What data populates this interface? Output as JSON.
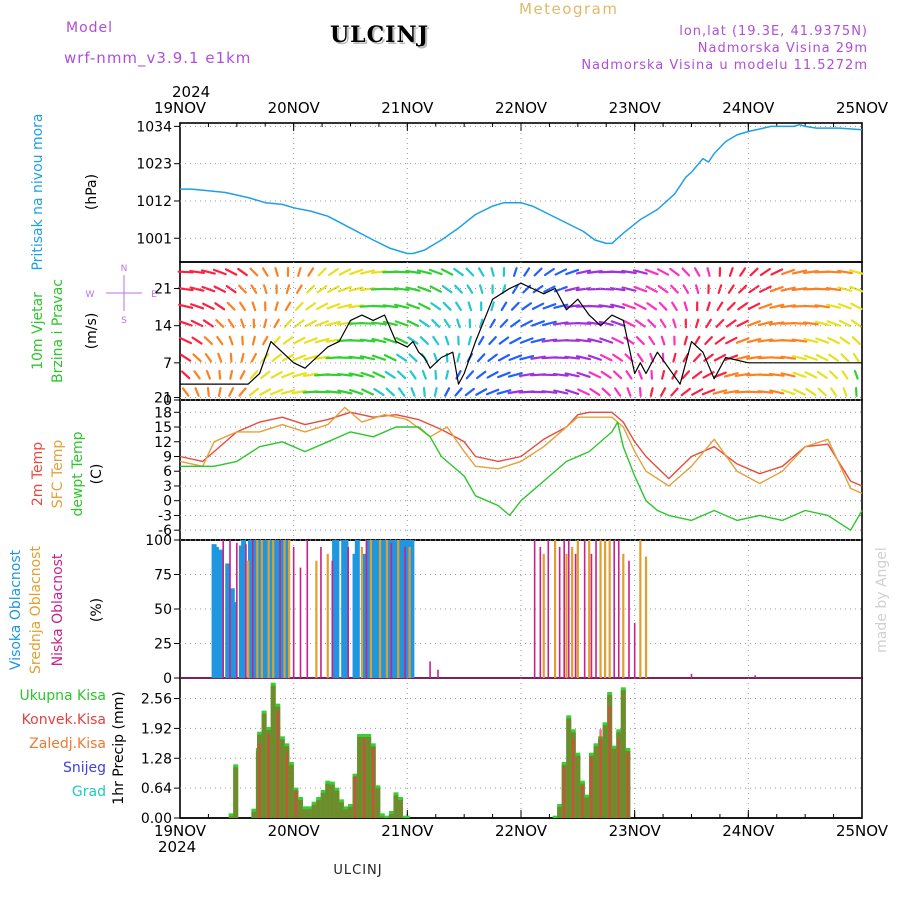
{
  "header": {
    "model_label": "Model",
    "model_name": "wrf-nmm_v3.9.1 e1km",
    "station": "ULCINJ",
    "title": "Meteogram",
    "coords": "lon,lat (19.3E, 41.9375N)",
    "elevation": "Nadmorska Visina 29m",
    "model_elevation": "Nadmorska Visina u modelu 11.5272m",
    "year_top": "2024",
    "year_bottom": "2024",
    "footer_station": "ULCINJ",
    "watermark": "made by Angel"
  },
  "colors": {
    "pressure": "#1ea0e6",
    "t2m": "#e84a3c",
    "sfc": "#e2a13a",
    "dewpt": "#2cc62c",
    "high_cloud": "#1e96e0",
    "mid_cloud": "#e0a030",
    "low_cloud": "#c8208c",
    "total_precip": "#34d034",
    "conv_precip": "#e84040",
    "speed_line": "#000000"
  },
  "time_axis": {
    "labels": [
      "19NOV",
      "20NOV",
      "21NOV",
      "22NOV",
      "23NOV",
      "24NOV",
      "25NOV"
    ]
  },
  "chart_data": [
    {
      "type": "line",
      "id": "pressure",
      "ylabels": [
        "Pritisak na nivou mora",
        "(hPa)"
      ],
      "yticks": [
        1001,
        1012,
        1023,
        1034
      ],
      "ylim": [
        994,
        1035
      ],
      "series": [
        {
          "x": [
            0,
            0.1,
            0.25,
            0.4,
            0.6,
            0.75,
            0.9,
            1.0,
            1.15,
            1.3,
            1.5,
            1.7,
            1.85,
            2.0,
            2.05,
            2.15,
            2.3,
            2.45,
            2.6,
            2.75,
            2.85,
            3.0,
            3.1,
            3.25,
            3.4,
            3.55,
            3.65,
            3.75,
            3.8,
            3.9,
            4.05,
            4.2,
            4.35,
            4.45,
            4.5,
            4.55,
            4.6,
            4.65,
            4.7,
            4.8,
            4.9,
            5.0,
            5.2,
            5.4,
            5.45,
            5.5,
            5.6,
            5.8,
            6.0
          ],
          "values": [
            1015.5,
            1015.5,
            1015,
            1014.5,
            1013,
            1011.5,
            1011,
            1010,
            1009,
            1007.5,
            1004,
            1000.5,
            998,
            996.5,
            996.5,
            997.5,
            1000.5,
            1004,
            1008,
            1010.5,
            1011.5,
            1011.5,
            1010.5,
            1008,
            1005.5,
            1003,
            1000.5,
            999.5,
            999.5,
            1002.5,
            1006.5,
            1009.5,
            1014,
            1019,
            1020.5,
            1022.5,
            1024.5,
            1023.5,
            1026,
            1029.5,
            1031.5,
            1032.5,
            1034,
            1034,
            1034.5,
            1034,
            1033.5,
            1033.5,
            1033
          ]
        }
      ]
    },
    {
      "type": "line",
      "id": "wind",
      "ylabels": [
        "10m Vjetar",
        "Brzina i Pravac",
        "(m/s)"
      ],
      "compass": [
        "N",
        "S",
        "E",
        "W"
      ],
      "yticks": [
        0,
        7,
        14,
        21
      ],
      "ylim": [
        0,
        26
      ],
      "series": [
        {
          "name": "speed",
          "x": [
            0,
            0.3,
            0.5,
            0.6,
            0.7,
            0.8,
            0.9,
            1.0,
            1.1,
            1.2,
            1.3,
            1.4,
            1.5,
            1.6,
            1.7,
            1.8,
            1.9,
            2.0,
            2.05,
            2.1,
            2.15,
            2.2,
            2.3,
            2.4,
            2.45,
            2.5,
            2.6,
            2.75,
            2.9,
            3.0,
            3.1,
            3.2,
            3.3,
            3.4,
            3.5,
            3.6,
            3.7,
            3.8,
            3.9,
            4.0,
            4.05,
            4.1,
            4.2,
            4.3,
            4.4,
            4.5,
            4.6,
            4.7,
            4.8,
            5.0,
            5.2,
            5.4,
            5.6,
            5.8,
            6.0
          ],
          "values": [
            3,
            3,
            3,
            3,
            5,
            11,
            9,
            7,
            6,
            8,
            10,
            11,
            15,
            16,
            15,
            16,
            11,
            10,
            11,
            9,
            8,
            6,
            8,
            9,
            3,
            5,
            11,
            19,
            21,
            22,
            21,
            20,
            21,
            17,
            19,
            16,
            14,
            16,
            15,
            5,
            7,
            5,
            9,
            6,
            3,
            11,
            9,
            4,
            8,
            7,
            7,
            7,
            7,
            7,
            7
          ]
        }
      ]
    },
    {
      "type": "line",
      "id": "temperature",
      "ylabels": [
        "2m Temp",
        "SFC Temp",
        "dewpt Temp",
        "(C)"
      ],
      "yticks": [
        -6,
        -3,
        0,
        3,
        6,
        9,
        12,
        15,
        18,
        21
      ],
      "ylim": [
        -8,
        20.5
      ],
      "series": [
        {
          "name": "2m Temp",
          "x": [
            0,
            0.2,
            0.3,
            0.5,
            0.7,
            0.9,
            1.1,
            1.3,
            1.5,
            1.7,
            1.9,
            2.1,
            2.3,
            2.5,
            2.6,
            2.8,
            3.0,
            3.2,
            3.4,
            3.5,
            3.6,
            3.8,
            3.9,
            4.0,
            4.1,
            4.3,
            4.5,
            4.7,
            4.9,
            5.1,
            5.3,
            5.5,
            5.7,
            5.9,
            6.0
          ],
          "values": [
            9,
            8,
            10,
            14,
            16,
            17,
            15.5,
            16.5,
            18,
            17,
            17.5,
            16.5,
            14.5,
            12,
            9,
            8,
            9,
            12.5,
            15,
            17.5,
            18,
            18,
            16,
            12,
            9,
            4.5,
            9,
            11,
            7.5,
            5.5,
            7,
            11,
            11.5,
            4,
            3
          ]
        },
        {
          "name": "SFC Temp",
          "x": [
            0,
            0.2,
            0.3,
            0.5,
            0.7,
            0.9,
            1.1,
            1.3,
            1.45,
            1.6,
            1.8,
            2.0,
            2.2,
            2.35,
            2.5,
            2.6,
            2.8,
            3.0,
            3.2,
            3.4,
            3.5,
            3.6,
            3.8,
            3.9,
            4.0,
            4.1,
            4.3,
            4.5,
            4.7,
            4.9,
            5.1,
            5.3,
            5.5,
            5.7,
            5.9,
            6.0
          ],
          "values": [
            8,
            7,
            12,
            14,
            14,
            15.5,
            14,
            15.5,
            19,
            16,
            17.5,
            16.5,
            13,
            15,
            10,
            7,
            6.5,
            8,
            11,
            15,
            17,
            17,
            17,
            15,
            10,
            6,
            3,
            7,
            12.5,
            6,
            3.5,
            6,
            11,
            12.5,
            2.5,
            1.5
          ]
        },
        {
          "name": "dewpt Temp",
          "x": [
            0,
            0.2,
            0.3,
            0.5,
            0.7,
            0.9,
            1.1,
            1.3,
            1.5,
            1.7,
            1.9,
            2.1,
            2.2,
            2.3,
            2.5,
            2.6,
            2.8,
            2.9,
            3.0,
            3.2,
            3.4,
            3.6,
            3.8,
            3.85,
            3.9,
            4.0,
            4.1,
            4.2,
            4.3,
            4.5,
            4.7,
            4.9,
            5.1,
            5.3,
            5.5,
            5.7,
            5.9,
            6.0
          ],
          "values": [
            7,
            7,
            7,
            8,
            11,
            12,
            10,
            12,
            14,
            13,
            15,
            15,
            13,
            9,
            5,
            1,
            -1,
            -3,
            0,
            4,
            8,
            10,
            14,
            16,
            11,
            5,
            0,
            -2,
            -3,
            -4,
            -2,
            -4,
            -3,
            -4,
            -2,
            -3,
            -6,
            -2
          ]
        }
      ]
    },
    {
      "type": "bar",
      "id": "cloud",
      "ylabels": [
        "Visoka Oblacnost",
        "Srednja Oblacnost",
        "Niska Oblacnost",
        "(%)"
      ],
      "yticks": [
        0,
        25,
        50,
        75,
        100
      ],
      "ylim": [
        0,
        100
      ],
      "series": [
        {
          "name": "Visoka Oblacnost",
          "x": [
            0.3,
            0.32,
            0.36,
            0.42,
            0.46,
            0.48,
            0.54,
            0.56,
            0.62,
            0.66,
            0.7,
            0.74,
            0.76,
            0.8,
            0.84,
            0.86,
            0.9,
            0.94,
            1.36,
            1.38,
            1.44,
            1.46,
            1.54,
            1.56,
            1.62,
            1.66,
            1.7,
            1.72,
            1.74,
            1.78,
            1.8,
            1.84,
            1.88,
            1.9,
            1.94,
            1.96,
            2.0,
            2.04
          ],
          "values": [
            97,
            95,
            93,
            83,
            65,
            55,
            96,
            100,
            100,
            100,
            100,
            100,
            100,
            100,
            100,
            100,
            100,
            100,
            100,
            100,
            100,
            100,
            90,
            100,
            90,
            100,
            100,
            100,
            100,
            100,
            100,
            100,
            100,
            100,
            100,
            100,
            100,
            100
          ]
        },
        {
          "name": "Srednja Oblacnost",
          "x": [
            0.6,
            0.68,
            0.72,
            0.78,
            0.82,
            0.92,
            0.96,
            1.2,
            1.3,
            1.6,
            1.68,
            1.76,
            1.82,
            1.92,
            2.02,
            3.2,
            3.3,
            3.4,
            3.45,
            3.5,
            3.6,
            3.7,
            3.74,
            3.78,
            3.9,
            4.05,
            4.1
          ],
          "values": [
            85,
            100,
            100,
            100,
            100,
            100,
            100,
            85,
            90,
            95,
            100,
            100,
            100,
            100,
            95,
            90,
            100,
            90,
            95,
            100,
            100,
            100,
            100,
            100,
            90,
            100,
            88
          ]
        },
        {
          "name": "Niska Oblacnost",
          "x": [
            0.38,
            0.44,
            0.5,
            0.58,
            0.64,
            0.88,
            1.0,
            1.06,
            1.12,
            1.24,
            1.34,
            1.48,
            1.64,
            1.86,
            1.98,
            2.2,
            2.27,
            3.12,
            3.17,
            3.24,
            3.34,
            3.38,
            3.42,
            3.48,
            3.56,
            3.62,
            3.66,
            3.82,
            3.86,
            3.95,
            4.0,
            4.5,
            5.06
          ],
          "values": [
            100,
            100,
            98,
            97,
            100,
            100,
            95,
            80,
            100,
            95,
            85,
            95,
            100,
            98,
            95,
            12,
            6,
            100,
            95,
            100,
            95,
            100,
            100,
            90,
            100,
            90,
            100,
            100,
            100,
            85,
            40,
            3,
            2
          ]
        }
      ]
    },
    {
      "type": "bar",
      "id": "precip",
      "ylabels": [
        "1hr Precip (mm)"
      ],
      "legend": [
        "Ukupna Kisa",
        "Konvek.Kisa",
        "Zaledj.Kisa",
        "Snijeg",
        "Grad"
      ],
      "yticks": [
        0,
        0.64,
        1.28,
        1.92,
        2.56
      ],
      "ylim": [
        0,
        3.0
      ],
      "series": [
        {
          "name": "Ukupna Kisa",
          "x": [
            0.45,
            0.49,
            0.65,
            0.69,
            0.7,
            0.74,
            0.78,
            0.82,
            0.86,
            0.9,
            0.94,
            0.98,
            1.02,
            1.06,
            1.1,
            1.14,
            1.18,
            1.22,
            1.26,
            1.3,
            1.34,
            1.38,
            1.42,
            1.46,
            1.5,
            1.54,
            1.58,
            1.62,
            1.66,
            1.7,
            1.74,
            1.78,
            1.82,
            1.86,
            1.9,
            1.94,
            1.98,
            2.0,
            3.3,
            3.34,
            3.38,
            3.42,
            3.46,
            3.5,
            3.54,
            3.58,
            3.62,
            3.66,
            3.7,
            3.74,
            3.78,
            3.82,
            3.86,
            3.9,
            3.94
          ],
          "values": [
            0.1,
            1.15,
            0.2,
            1.5,
            1.85,
            2.3,
            1.95,
            2.9,
            2.45,
            1.75,
            1.6,
            1.2,
            0.65,
            0.45,
            0.25,
            0.25,
            0.35,
            0.45,
            0.6,
            0.8,
            0.78,
            0.65,
            0.4,
            0.25,
            0.3,
            0.95,
            1.8,
            1.8,
            1.8,
            1.6,
            0.7,
            0.1,
            0.05,
            0.15,
            0.55,
            0.45,
            0.05,
            0.05,
            0.05,
            0.3,
            1.2,
            2.2,
            1.9,
            1.4,
            0.8,
            0.5,
            1.4,
            1.6,
            1.75,
            2.05,
            2.7,
            1.55,
            1.9,
            2.8,
            1.5
          ]
        },
        {
          "name": "Konvek.Kisa",
          "x": [
            0.7,
            0.78,
            0.86,
            0.94,
            1.02,
            1.54,
            1.62,
            1.7,
            3.38,
            3.46,
            3.54,
            3.62,
            3.7,
            3.78,
            3.86,
            3.94
          ],
          "values": [
            1.6,
            1.8,
            2.3,
            1.4,
            0.6,
            0.9,
            1.7,
            1.5,
            1.1,
            1.7,
            0.7,
            1.3,
            1.9,
            2.4,
            1.7,
            1.4
          ]
        }
      ]
    }
  ]
}
